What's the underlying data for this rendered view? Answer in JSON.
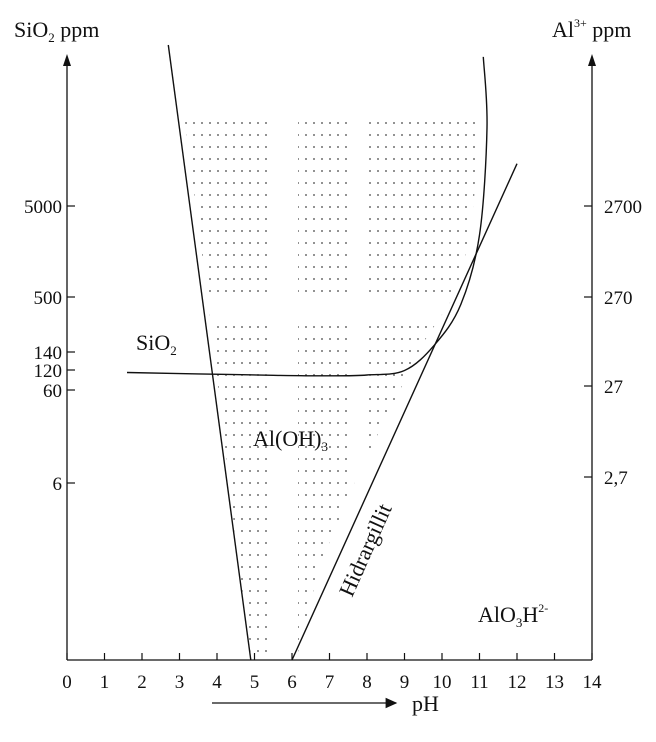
{
  "chart_data": {
    "type": "phase-diagram",
    "title": "",
    "xlabel": "pH",
    "x_ticks": [
      "0",
      "1",
      "2",
      "3",
      "4",
      "5",
      "6",
      "7",
      "8",
      "9",
      "10",
      "11",
      "12",
      "13",
      "14"
    ],
    "xlim": [
      0,
      14
    ],
    "left_axis": {
      "label_main": "SiO",
      "label_sub": "2",
      "label_unit": " ppm",
      "ticks": [
        {
          "label": "5000",
          "level": 5000
        },
        {
          "label": "500",
          "level": 500
        },
        {
          "label": "140",
          "level": 140
        },
        {
          "label": "120",
          "level": 120
        },
        {
          "label": "60",
          "level": 60
        },
        {
          "label": "6",
          "level": 6
        }
      ]
    },
    "right_axis": {
      "label_main": "Al",
      "label_sup": "3+",
      "label_unit": " ppm",
      "ticks": [
        {
          "label": "2700",
          "level": 2700
        },
        {
          "label": "270",
          "level": 270
        },
        {
          "label": "27",
          "level": 27
        },
        {
          "label": "2,7",
          "level": 2.7
        }
      ]
    },
    "labels": {
      "sio2_main": "SiO",
      "sio2_sub": "2",
      "aloh_pre": "Al(OH)",
      "aloh_sub": "3",
      "hidrargillit": "Hidrargillit",
      "alo3_pre": "AlO",
      "alo3_sub": "3",
      "alo3_h": "H",
      "alo3_sup": "2-"
    },
    "lines": [
      {
        "name": "left-boundary",
        "points": [
          [
            2.7,
            10000
          ],
          [
            4.9,
            0.5
          ]
        ]
      },
      {
        "name": "hidrargillit",
        "points": [
          [
            6.0,
            0.5
          ],
          [
            12.0,
            6000
          ]
        ]
      },
      {
        "name": "sio2-curve",
        "points": [
          [
            1.6,
            110
          ],
          [
            3.5,
            105
          ],
          [
            5.5,
            100
          ],
          [
            7.0,
            98
          ],
          [
            8.0,
            101
          ],
          [
            9.0,
            118
          ],
          [
            9.8,
            165
          ],
          [
            10.5,
            420
          ],
          [
            11.0,
            2400
          ],
          [
            11.2,
            7000
          ],
          [
            11.1,
            9500
          ]
        ]
      }
    ],
    "shaded_region": "Al(OH)3 stability field (dotted)",
    "grid": false
  }
}
